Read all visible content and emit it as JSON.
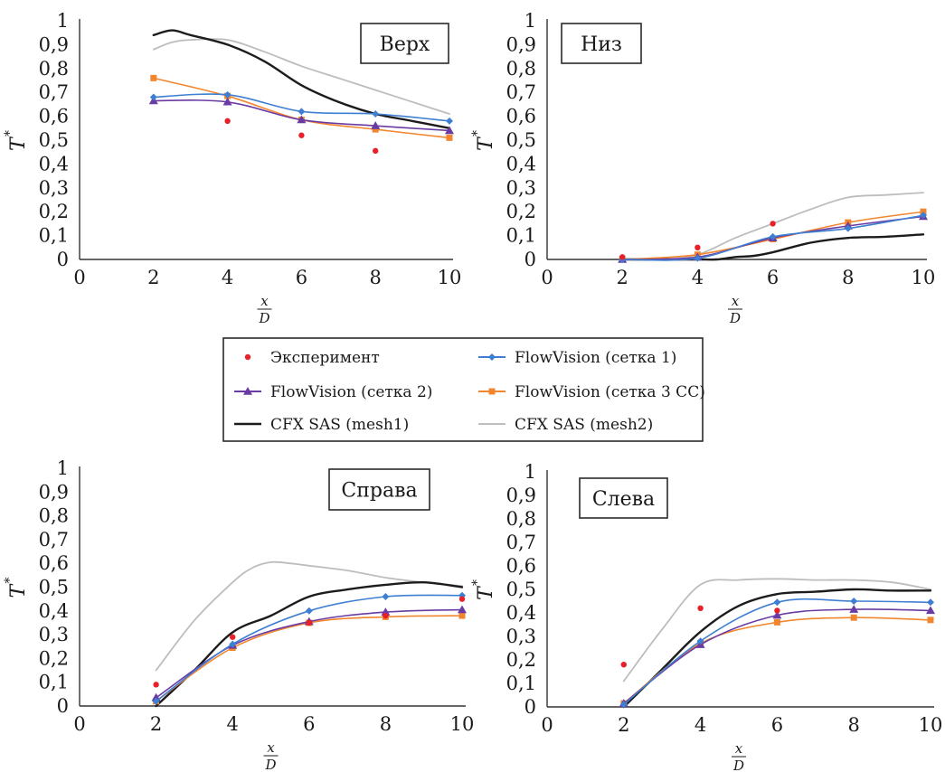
{
  "chart_data": [
    {
      "type": "line",
      "title": "Верх",
      "ylabel": "T",
      "ylabel_sup": "*",
      "xlabel_num": "x",
      "xlabel_den": "D",
      "xlim": [
        0,
        10
      ],
      "ylim": [
        0,
        1
      ],
      "x_ticks": [
        "0",
        "2",
        "4",
        "6",
        "8",
        "10"
      ],
      "y_ticks": [
        "0",
        "0,1",
        "0,2",
        "0,3",
        "0,4",
        "0,5",
        "0,6",
        "0,7",
        "0,8",
        "0,9",
        "1"
      ],
      "series": [
        {
          "name": "Эксперимент",
          "kind": "experiment",
          "x": [
            4,
            6,
            8
          ],
          "y": [
            0.58,
            0.52,
            0.455
          ]
        },
        {
          "name": "FlowVision (сетка 1)",
          "kind": "fv1",
          "x": [
            2,
            4,
            6,
            8,
            10
          ],
          "y": [
            0.68,
            0.69,
            0.62,
            0.61,
            0.58
          ]
        },
        {
          "name": "FlowVision (сетка 2)",
          "kind": "fv2",
          "x": [
            2,
            4,
            6,
            8,
            10
          ],
          "y": [
            0.665,
            0.66,
            0.585,
            0.56,
            0.54
          ]
        },
        {
          "name": "FlowVision (сетка 3 CC)",
          "kind": "fv3",
          "x": [
            2,
            4,
            6,
            8,
            10
          ],
          "y": [
            0.76,
            0.685,
            0.585,
            0.545,
            0.51
          ]
        },
        {
          "name": "CFX SAS (mesh1)",
          "kind": "cfx1",
          "x": [
            2,
            2.5,
            3,
            4,
            5,
            6,
            7,
            8,
            9,
            10
          ],
          "y": [
            0.94,
            0.96,
            0.94,
            0.9,
            0.83,
            0.73,
            0.66,
            0.61,
            0.58,
            0.55
          ]
        },
        {
          "name": "CFX SAS (mesh2)",
          "kind": "cfx2",
          "x": [
            2,
            2.5,
            3,
            4,
            5,
            6,
            7,
            8,
            9,
            10
          ],
          "y": [
            0.88,
            0.91,
            0.92,
            0.92,
            0.87,
            0.81,
            0.76,
            0.71,
            0.66,
            0.61
          ]
        }
      ]
    },
    {
      "type": "line",
      "title": "Низ",
      "ylabel": "T",
      "ylabel_sup": "*",
      "xlabel_num": "x",
      "xlabel_den": "D",
      "xlim": [
        0,
        10
      ],
      "ylim": [
        0,
        1
      ],
      "x_ticks": [
        "0",
        "2",
        "4",
        "6",
        "8",
        "10"
      ],
      "y_ticks": [
        "0",
        "0,1",
        "0,2",
        "0,3",
        "0,4",
        "0,5",
        "0,6",
        "0,7",
        "0,8",
        "0,9",
        "1"
      ],
      "series": [
        {
          "name": "Эксперимент",
          "kind": "experiment",
          "x": [
            2,
            4,
            6
          ],
          "y": [
            0.01,
            0.05,
            0.15
          ]
        },
        {
          "name": "FlowVision (сетка 1)",
          "kind": "fv1",
          "x": [
            2,
            4,
            6,
            8,
            10
          ],
          "y": [
            0,
            0.005,
            0.095,
            0.13,
            0.185
          ]
        },
        {
          "name": "FlowVision (сетка 2)",
          "kind": "fv2",
          "x": [
            2,
            4,
            6,
            8,
            10
          ],
          "y": [
            0,
            0.01,
            0.09,
            0.14,
            0.18
          ]
        },
        {
          "name": "FlowVision (сетка 3 CC)",
          "kind": "fv3",
          "x": [
            2,
            4,
            6,
            8,
            10
          ],
          "y": [
            0,
            0.02,
            0.085,
            0.155,
            0.2
          ]
        },
        {
          "name": "CFX SAS (mesh1)",
          "kind": "cfx1",
          "x": [
            2,
            3,
            4,
            4.5,
            5,
            5.5,
            6,
            7,
            8,
            9,
            10
          ],
          "y": [
            0,
            0,
            0,
            0,
            0.01,
            0.015,
            0.03,
            0.07,
            0.09,
            0.095,
            0.105
          ]
        },
        {
          "name": "CFX SAS (mesh2)",
          "kind": "cfx2",
          "x": [
            2,
            3,
            4,
            5,
            6,
            7,
            8,
            9,
            10
          ],
          "y": [
            0,
            0,
            0.02,
            0.09,
            0.15,
            0.21,
            0.26,
            0.27,
            0.28
          ]
        }
      ]
    },
    {
      "type": "line",
      "title": "Справа",
      "ylabel": "T",
      "ylabel_sup": "*",
      "xlabel_num": "x",
      "xlabel_den": "D",
      "xlim": [
        0,
        10
      ],
      "ylim": [
        0,
        1
      ],
      "x_ticks": [
        "0",
        "2",
        "4",
        "6",
        "8",
        "10"
      ],
      "y_ticks": [
        "0",
        "0,1",
        "0,2",
        "0,3",
        "0,4",
        "0,5",
        "0,6",
        "0,7",
        "0,8",
        "0,9",
        "1"
      ],
      "series": [
        {
          "name": "Эксперимент",
          "kind": "experiment",
          "x": [
            2,
            4,
            6,
            8,
            10
          ],
          "y": [
            0.09,
            0.29,
            0.35,
            0.38,
            0.45
          ]
        },
        {
          "name": "FlowVision (сетка 1)",
          "kind": "fv1",
          "x": [
            2,
            4,
            6,
            8,
            10
          ],
          "y": [
            0.02,
            0.26,
            0.4,
            0.46,
            0.465
          ]
        },
        {
          "name": "FlowVision (сетка 2)",
          "kind": "fv2",
          "x": [
            2,
            4,
            6,
            8,
            10
          ],
          "y": [
            0.035,
            0.255,
            0.355,
            0.395,
            0.405
          ]
        },
        {
          "name": "FlowVision (сетка 3 CC)",
          "kind": "fv3",
          "x": [
            2,
            4,
            6,
            8,
            10
          ],
          "y": [
            0.02,
            0.245,
            0.35,
            0.375,
            0.38
          ]
        },
        {
          "name": "CFX SAS (mesh1)",
          "kind": "cfx1",
          "x": [
            2,
            3,
            4,
            5,
            6,
            7,
            8,
            9,
            10
          ],
          "y": [
            0,
            0.15,
            0.31,
            0.38,
            0.46,
            0.49,
            0.51,
            0.52,
            0.5
          ]
        },
        {
          "name": "CFX SAS (mesh2)",
          "kind": "cfx2",
          "x": [
            2,
            3,
            4,
            4.5,
            5,
            5.5,
            6,
            7,
            8,
            9,
            10
          ],
          "y": [
            0.15,
            0.36,
            0.52,
            0.58,
            0.605,
            0.6,
            0.59,
            0.57,
            0.54,
            0.52,
            0.505
          ]
        }
      ]
    },
    {
      "type": "line",
      "title": "Слева",
      "ylabel": "T",
      "ylabel_sup": "*",
      "xlabel_num": "x",
      "xlabel_den": "D",
      "xlim": [
        0,
        10
      ],
      "ylim": [
        0,
        1
      ],
      "x_ticks": [
        "0",
        "2",
        "4",
        "6",
        "8",
        "10"
      ],
      "y_ticks": [
        "0",
        "0,1",
        "0,2",
        "0,3",
        "0,4",
        "0,5",
        "0,6",
        "0,7",
        "0,8",
        "0,9",
        "1"
      ],
      "series": [
        {
          "name": "Эксперимент",
          "kind": "experiment",
          "x": [
            2,
            4,
            6
          ],
          "y": [
            0.18,
            0.42,
            0.41
          ]
        },
        {
          "name": "FlowVision (сетка 1)",
          "kind": "fv1",
          "x": [
            2,
            4,
            6,
            8,
            10
          ],
          "y": [
            0.01,
            0.28,
            0.445,
            0.45,
            0.445
          ]
        },
        {
          "name": "FlowVision (сетка 2)",
          "kind": "fv2",
          "x": [
            2,
            4,
            6,
            8,
            10
          ],
          "y": [
            0.015,
            0.265,
            0.39,
            0.415,
            0.41
          ]
        },
        {
          "name": "FlowVision (сетка 3 CC)",
          "kind": "fv3",
          "x": [
            2,
            4,
            6,
            8,
            10
          ],
          "y": [
            0.015,
            0.27,
            0.36,
            0.38,
            0.37
          ]
        },
        {
          "name": "CFX SAS (mesh1)",
          "kind": "cfx1",
          "x": [
            2,
            3,
            4,
            5,
            6,
            7,
            8,
            9,
            10
          ],
          "y": [
            0,
            0.16,
            0.32,
            0.43,
            0.48,
            0.49,
            0.5,
            0.495,
            0.495
          ]
        },
        {
          "name": "CFX SAS (mesh2)",
          "kind": "cfx2",
          "x": [
            2,
            3,
            4,
            5,
            6,
            7,
            8,
            9,
            10
          ],
          "y": [
            0.11,
            0.33,
            0.52,
            0.54,
            0.545,
            0.54,
            0.54,
            0.53,
            0.5
          ]
        }
      ]
    }
  ],
  "legend": {
    "entries": [
      {
        "label": "Эксперимент",
        "kind": "experiment"
      },
      {
        "label": "FlowVision (сетка 1)",
        "kind": "fv1"
      },
      {
        "label": "FlowVision (сетка 2)",
        "kind": "fv2"
      },
      {
        "label": "FlowVision (сетка 3 CC)",
        "kind": "fv3"
      },
      {
        "label": "CFX SAS (mesh1)",
        "kind": "cfx1"
      },
      {
        "label": "CFX SAS (mesh2)",
        "kind": "cfx2"
      }
    ]
  },
  "series_styles": {
    "experiment": {
      "color": "#e8202a",
      "marker": "dot"
    },
    "fv1": {
      "color": "#3f7fd1",
      "marker": "diamond"
    },
    "fv2": {
      "color": "#6a3ca3",
      "marker": "triangle"
    },
    "fv3": {
      "color": "#f2862f",
      "marker": "square"
    },
    "cfx1": {
      "color": "#1c1c1c",
      "marker": "none"
    },
    "cfx2": {
      "color": "#bdbdbd",
      "marker": "none"
    }
  }
}
